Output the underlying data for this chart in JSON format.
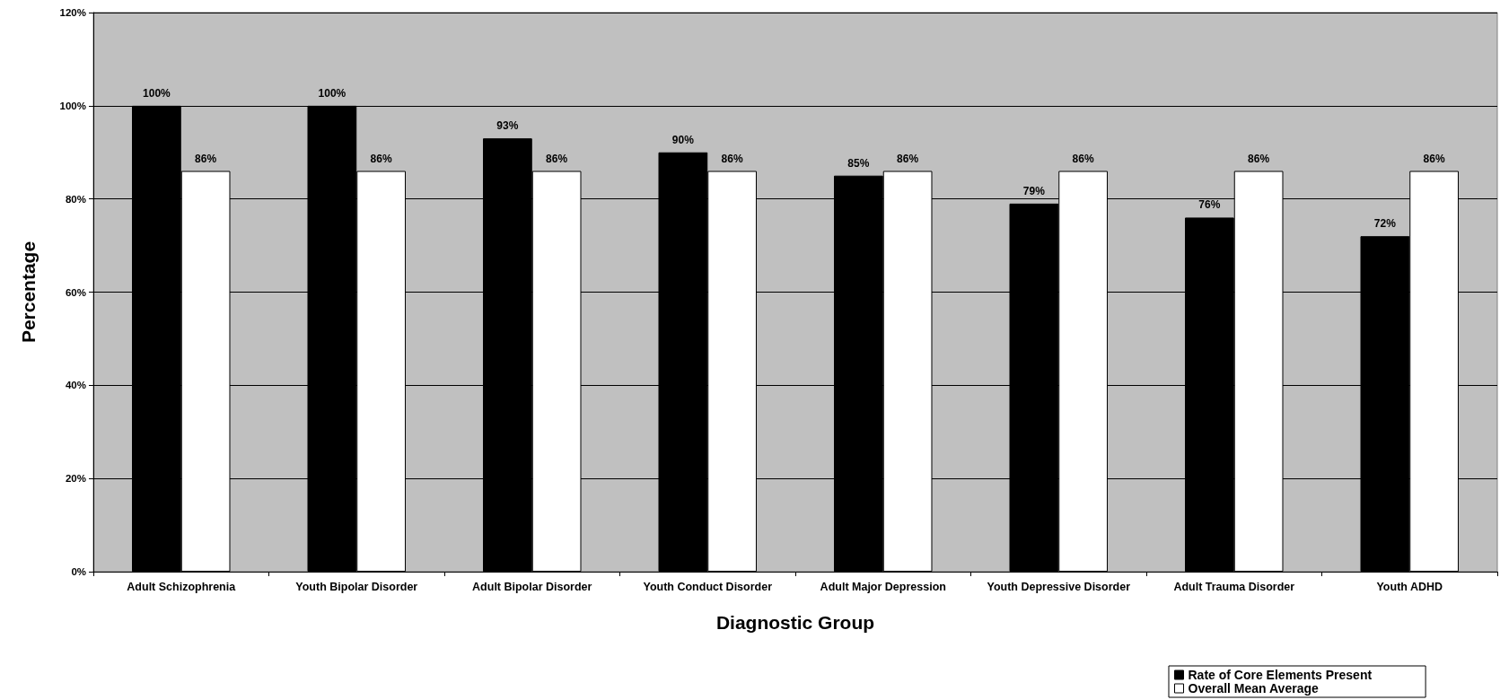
{
  "chart_data": {
    "type": "bar",
    "xlabel": "Diagnostic Group",
    "ylabel": "Percentage",
    "categories": [
      "Adult Schizophrenia",
      "Youth Bipolar Disorder",
      "Adult Bipolar Disorder",
      "Youth Conduct Disorder",
      "Adult Major Depression",
      "Youth Depressive Disorder",
      "Adult Trauma Disorder",
      "Youth ADHD"
    ],
    "series": [
      {
        "name": "Rate of Core Elements Present",
        "color": "#000000",
        "values": [
          100,
          100,
          93,
          90,
          85,
          79,
          76,
          72
        ],
        "value_labels": [
          "100%",
          "100%",
          "93%",
          "90%",
          "85%",
          "79%",
          "76%",
          "72%"
        ]
      },
      {
        "name": "Overall Mean Average",
        "color": "#ffffff",
        "values": [
          86,
          86,
          86,
          86,
          86,
          86,
          86,
          86
        ],
        "value_labels": [
          "86%",
          "86%",
          "86%",
          "86%",
          "86%",
          "86%",
          "86%",
          "86%"
        ]
      }
    ],
    "ylim": [
      0,
      120
    ],
    "yticks": [
      {
        "value": 0,
        "label": "0%"
      },
      {
        "value": 20,
        "label": "20%"
      },
      {
        "value": 40,
        "label": "40%"
      },
      {
        "value": 60,
        "label": "60%"
      },
      {
        "value": 80,
        "label": "80%"
      },
      {
        "value": 100,
        "label": "100%"
      },
      {
        "value": 120,
        "label": "120%"
      }
    ],
    "grid": "y",
    "legend": "bottom right"
  }
}
